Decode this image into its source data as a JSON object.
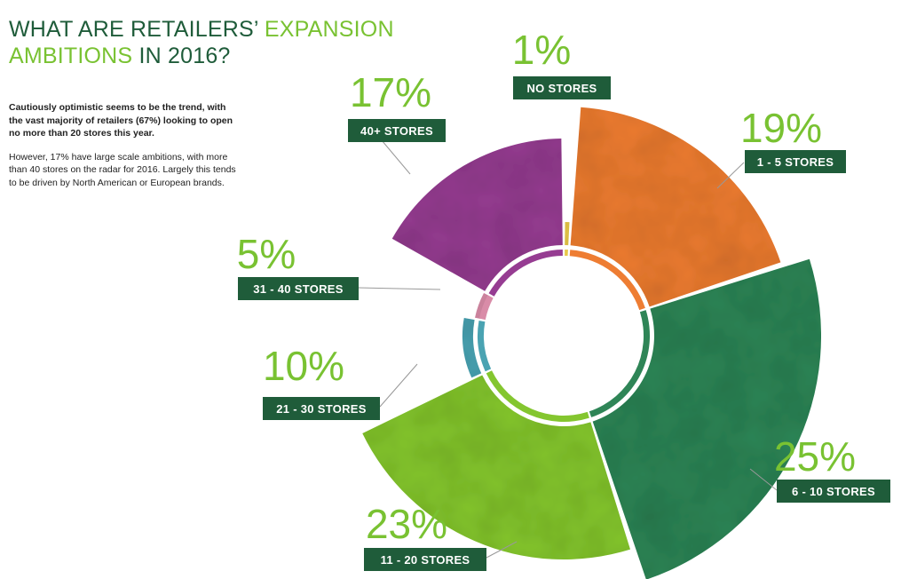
{
  "header": {
    "title_part1": "WHAT ARE RETAILERS’",
    "title_part2": "EXPANSION",
    "title_part3": "AMBITIONS",
    "title_part4": "IN 2016?"
  },
  "intro": {
    "lead": "Cautiously optimistic seems to be the trend, with the vast majority of retailers (67%) looking to open no more than 20 stores this year.",
    "body": "However, 17% have large scale ambitions, with more than 40 stores on the radar for 2016. Largely this tends to be driven by North American or European brands."
  },
  "colors": {
    "title_dark": "#1f5c3a",
    "accent_green": "#79c232",
    "label_box": "#1f5c3a"
  },
  "chart_data": {
    "type": "pie",
    "title": "WHAT ARE RETAILERS’ EXPANSION AMBITIONS IN 2016?",
    "style": "donut with radially offset segments",
    "slices": [
      {
        "label": "NO STORES",
        "value": 1,
        "display": "1%",
        "color": "#e8c84a"
      },
      {
        "label": "1 - 5 STORES",
        "value": 19,
        "display": "19%",
        "color": "#ee7d33"
      },
      {
        "label": "6 - 10 STORES",
        "value": 25,
        "display": "25%",
        "color": "#2f8557"
      },
      {
        "label": "11 - 20 STORES",
        "value": 23,
        "display": "23%",
        "color": "#84c62f"
      },
      {
        "label": "21 - 30 STORES",
        "value": 10,
        "display": "10%",
        "color": "#4aa3b2"
      },
      {
        "label": "31 - 40 STORES",
        "value": 5,
        "display": "5%",
        "color": "#d98ca8"
      },
      {
        "label": "40+ STORES",
        "value": 17,
        "display": "17%",
        "color": "#963c92"
      }
    ]
  }
}
